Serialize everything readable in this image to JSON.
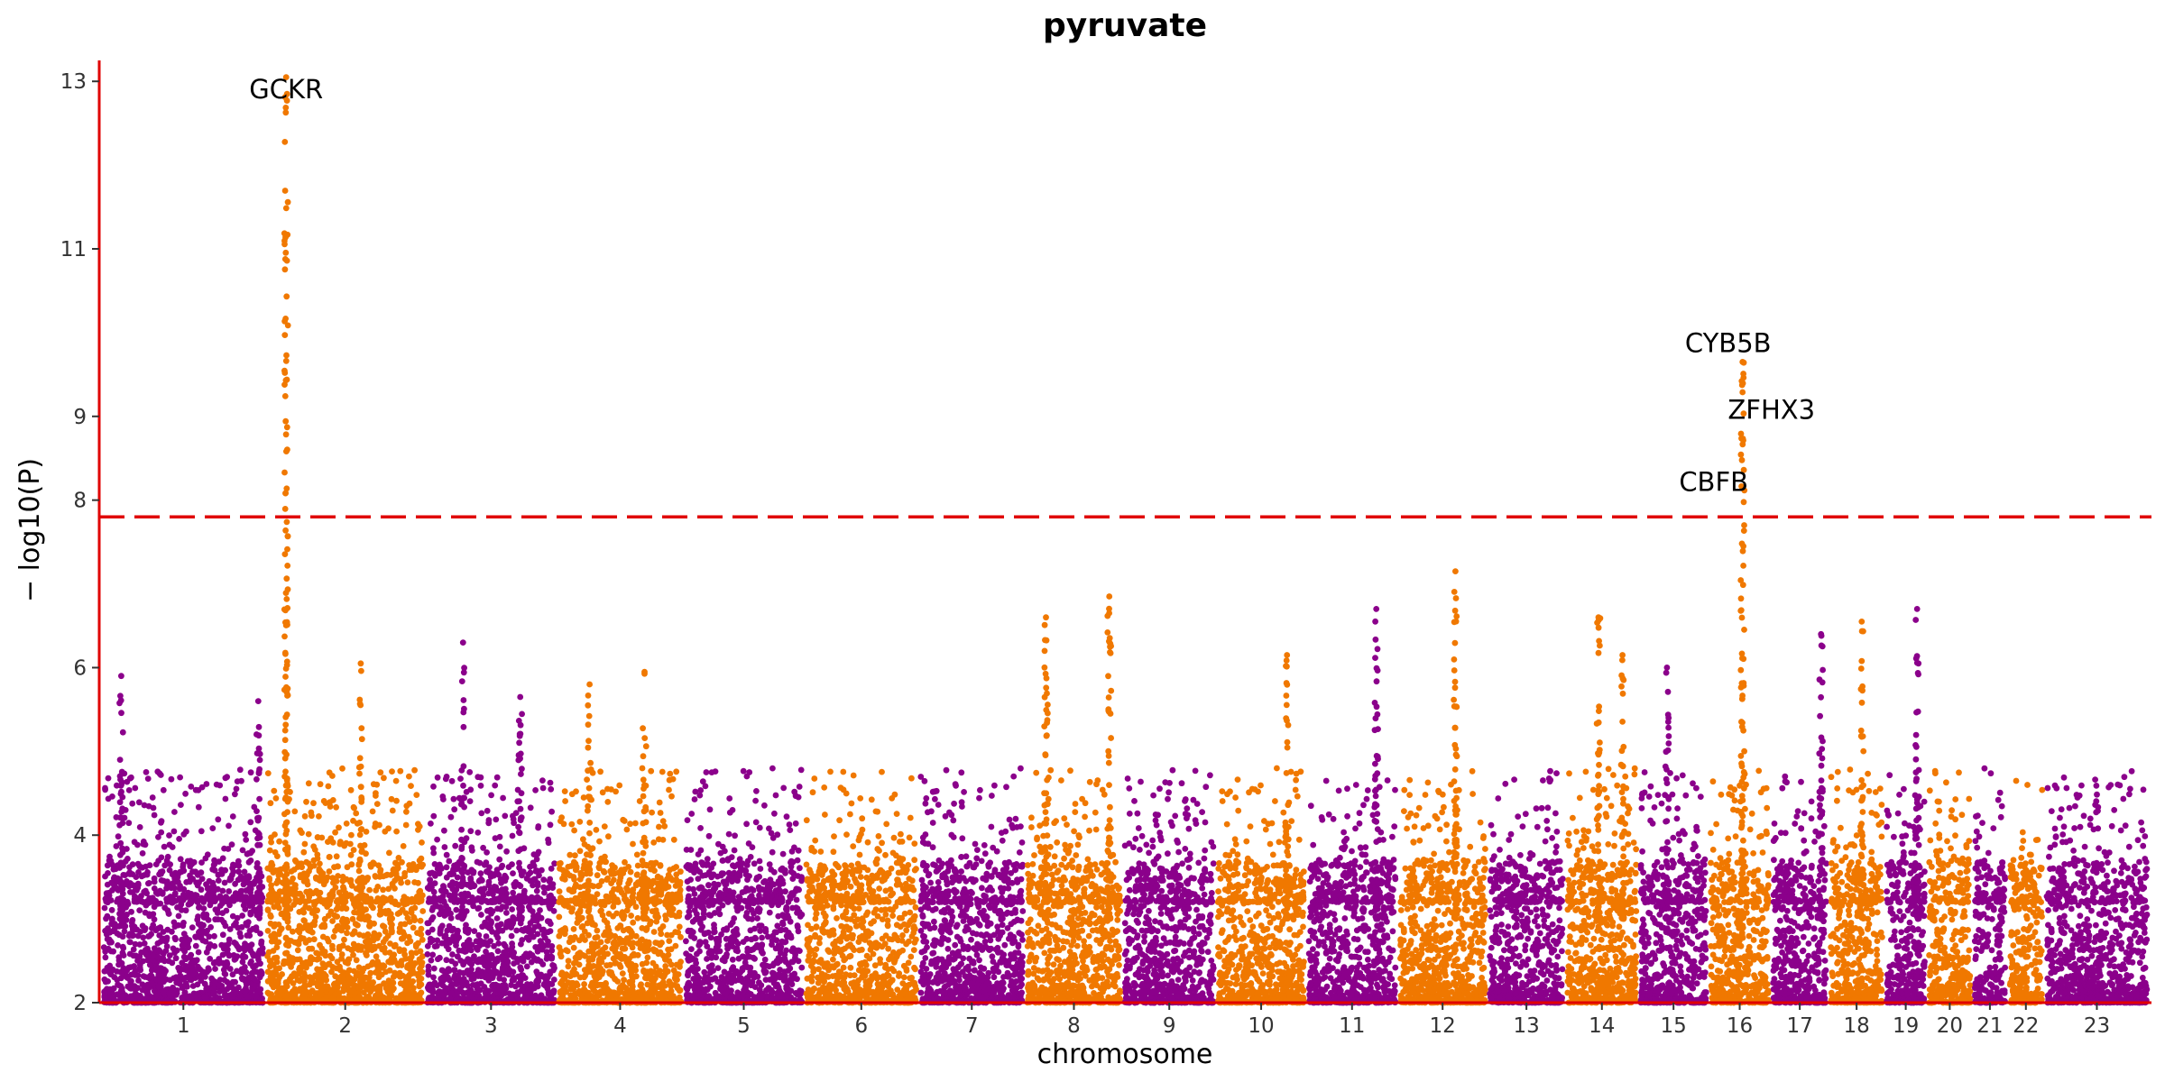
{
  "chart_data": {
    "type": "scatter",
    "title": "pyruvate",
    "xlabel": "chromosome",
    "ylabel": "− log10(P)",
    "ylim": [
      2,
      13.25
    ],
    "yticks": [
      2,
      4,
      6,
      8,
      9,
      11,
      13
    ],
    "grid": false,
    "significance_threshold": 7.8,
    "colors": {
      "odd": "#8B008B",
      "even": "#F07800",
      "threshold": "#E00000",
      "axis": "#E00000"
    },
    "chromosomes": [
      {
        "label": "1",
        "size": 248
      },
      {
        "label": "2",
        "size": 242
      },
      {
        "label": "3",
        "size": 198
      },
      {
        "label": "4",
        "size": 190
      },
      {
        "label": "5",
        "size": 181
      },
      {
        "label": "6",
        "size": 171
      },
      {
        "label": "7",
        "size": 159
      },
      {
        "label": "8",
        "size": 145
      },
      {
        "label": "9",
        "size": 138
      },
      {
        "label": "10",
        "size": 134
      },
      {
        "label": "11",
        "size": 135
      },
      {
        "label": "12",
        "size": 133
      },
      {
        "label": "13",
        "size": 114
      },
      {
        "label": "14",
        "size": 107
      },
      {
        "label": "15",
        "size": 102
      },
      {
        "label": "16",
        "size": 90
      },
      {
        "label": "17",
        "size": 83
      },
      {
        "label": "18",
        "size": 80
      },
      {
        "label": "19",
        "size": 59
      },
      {
        "label": "20",
        "size": 64
      },
      {
        "label": "21",
        "size": 47
      },
      {
        "label": "22",
        "size": 51
      },
      {
        "label": "23",
        "size": 156
      }
    ],
    "peaks": [
      {
        "chrom": "1",
        "pos": 0.11,
        "max": 5.9
      },
      {
        "chrom": "1",
        "pos": 0.97,
        "max": 5.6
      },
      {
        "chrom": "2",
        "pos": 0.12,
        "max": 13.05
      },
      {
        "chrom": "2",
        "pos": 0.6,
        "max": 6.05
      },
      {
        "chrom": "3",
        "pos": 0.28,
        "max": 6.3
      },
      {
        "chrom": "3",
        "pos": 0.73,
        "max": 5.65
      },
      {
        "chrom": "4",
        "pos": 0.25,
        "max": 5.8
      },
      {
        "chrom": "4",
        "pos": 0.7,
        "max": 5.95
      },
      {
        "chrom": "8",
        "pos": 0.2,
        "max": 6.6
      },
      {
        "chrom": "8",
        "pos": 0.88,
        "max": 6.85
      },
      {
        "chrom": "10",
        "pos": 0.8,
        "max": 6.15
      },
      {
        "chrom": "11",
        "pos": 0.78,
        "max": 6.7
      },
      {
        "chrom": "12",
        "pos": 0.65,
        "max": 7.15
      },
      {
        "chrom": "14",
        "pos": 0.45,
        "max": 6.6
      },
      {
        "chrom": "14",
        "pos": 0.8,
        "max": 6.15
      },
      {
        "chrom": "15",
        "pos": 0.4,
        "max": 6.0
      },
      {
        "chrom": "16",
        "pos": 0.55,
        "max": 9.65
      },
      {
        "chrom": "17",
        "pos": 0.9,
        "max": 6.4
      },
      {
        "chrom": "18",
        "pos": 0.6,
        "max": 6.55
      },
      {
        "chrom": "19",
        "pos": 0.8,
        "max": 6.7
      }
    ],
    "annotations": [
      {
        "label": "GCKR",
        "chrom": "2",
        "pos": 0.12,
        "y": 12.8
      },
      {
        "label": "CYB5B",
        "chrom": "16",
        "pos": 0.3,
        "y": 9.77
      },
      {
        "label": "ZFHX3",
        "chrom": "16",
        "pos": 1.05,
        "y": 8.97
      },
      {
        "label": "CBFB",
        "chrom": "16",
        "pos": 0.05,
        "y": 8.11
      }
    ]
  }
}
